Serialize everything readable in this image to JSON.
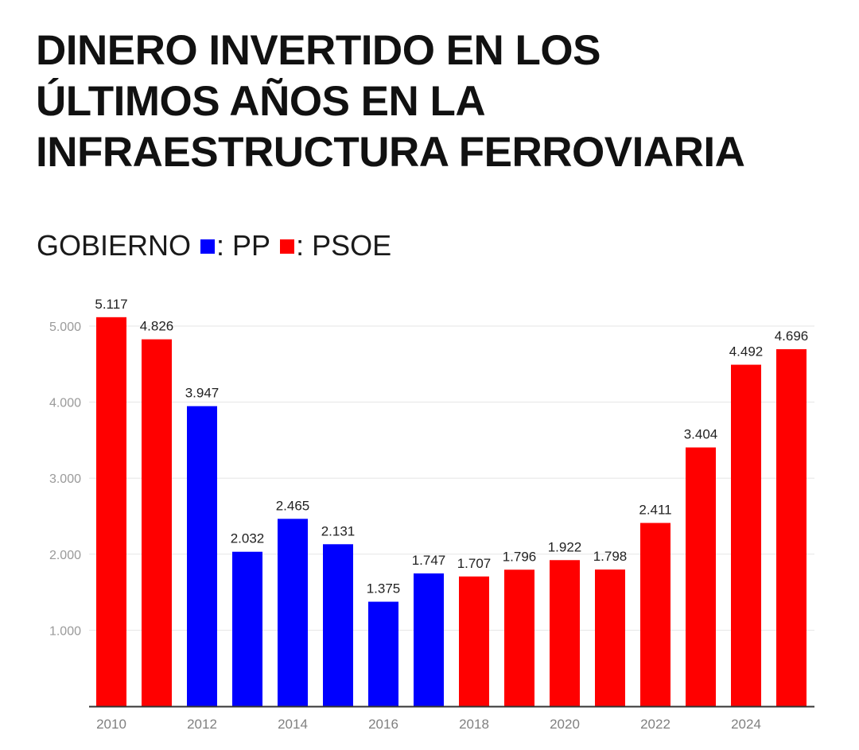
{
  "title_lines": [
    "DINERO INVERTIDO EN LOS",
    "ÚLTIMOS AÑOS EN LA",
    "INFRAESTRUCTURA FERROVIARIA"
  ],
  "legend": {
    "prefix": "GOBIERNO",
    "items": [
      {
        "label": ": PP",
        "color": "#0000ff"
      },
      {
        "label": ": PSOE",
        "color": "#ff0000"
      }
    ]
  },
  "chart_data": {
    "type": "bar",
    "title": "DINERO INVERTIDO EN LOS ÚLTIMOS AÑOS EN LA INFRAESTRUCTURA FERROVIARIA",
    "xlabel": "",
    "ylabel": "",
    "ylim": [
      0,
      5200
    ],
    "yticks": [
      1000,
      2000,
      3000,
      4000,
      5000
    ],
    "ytick_labels": [
      "1.000",
      "2.000",
      "3.000",
      "4.000",
      "5.000"
    ],
    "grid": true,
    "legend_position": "top-left",
    "categories": [
      "2010",
      "2011",
      "2012",
      "2013",
      "2014",
      "2015",
      "2016",
      "2017",
      "2018",
      "2019",
      "2020",
      "2021",
      "2022",
      "2023",
      "2024",
      "2025"
    ],
    "xtick_labels": [
      "2010",
      "",
      "2012",
      "",
      "2014",
      "",
      "2016",
      "",
      "2018",
      "",
      "2020",
      "",
      "2022",
      "",
      "2024",
      ""
    ],
    "values": [
      5117,
      4826,
      3947,
      2032,
      2465,
      2131,
      1375,
      1747,
      1707,
      1796,
      1922,
      1798,
      2411,
      3404,
      4492,
      4696
    ],
    "value_labels": [
      "5.117",
      "4.826",
      "3.947",
      "2.032",
      "2.465",
      "2.131",
      "1.375",
      "1.747",
      "1.707",
      "1.796",
      "1.922",
      "1.798",
      "2.411",
      "3.404",
      "4.492",
      "4.696"
    ],
    "government": [
      "PSOE",
      "PSOE",
      "PP",
      "PP",
      "PP",
      "PP",
      "PP",
      "PP",
      "PSOE",
      "PSOE",
      "PSOE",
      "PSOE",
      "PSOE",
      "PSOE",
      "PSOE",
      "PSOE"
    ],
    "colors": {
      "PP": "#0000ff",
      "PSOE": "#ff0000"
    }
  }
}
